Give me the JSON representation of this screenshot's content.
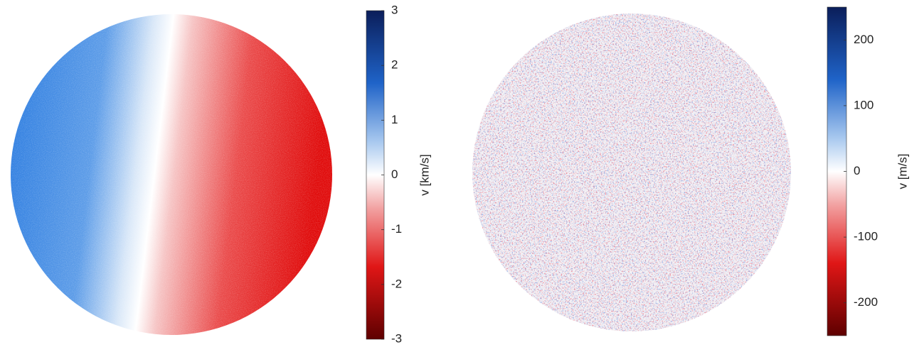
{
  "chart_data": [
    {
      "type": "heatmap",
      "colorbar": {
        "label": "v [km/s]",
        "lim": [
          -3,
          3
        ],
        "ticks": [
          -3,
          -2,
          -1,
          0,
          1,
          2,
          3
        ]
      }
    },
    {
      "type": "heatmap",
      "colorbar": {
        "label": "v [m/s]",
        "lim": [
          -250,
          250
        ],
        "ticks": [
          -200,
          -100,
          0,
          100,
          200
        ]
      }
    }
  ]
}
